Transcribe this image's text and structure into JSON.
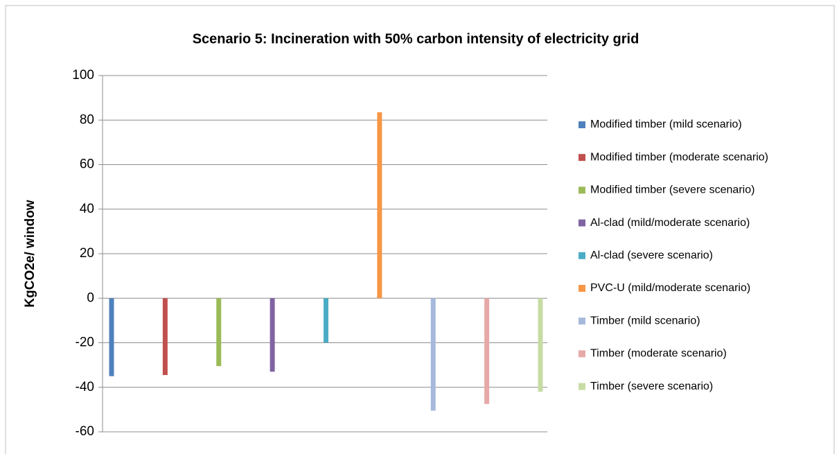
{
  "chart_data": {
    "type": "bar",
    "title": "Scenario 5: Incineration with 50% carbon intensity of electricity grid",
    "y_label": "KgCO2e/ window",
    "categories": [
      null
    ],
    "series": [
      {
        "name": "Modified timber (mild scenario)",
        "color": "#4f81bd",
        "values": [
          -35
        ]
      },
      {
        "name": "Modified timber (moderate scenario)",
        "color": "#c0504d",
        "values": [
          -34.5
        ]
      },
      {
        "name": "Modified timber (severe scenario)",
        "color": "#9bbb59",
        "values": [
          -30.5
        ]
      },
      {
        "name": "Al-clad (mild/moderate scenario)",
        "color": "#8064a2",
        "values": [
          -33
        ]
      },
      {
        "name": "Al-clad (severe scenario)",
        "color": "#4bacc6",
        "values": [
          -20
        ]
      },
      {
        "name": "PVC-U (mild/moderate scenario)",
        "color": "#f79646",
        "values": [
          83.5
        ]
      },
      {
        "name": "Timber (mild scenario)",
        "color": "#a6b9dc",
        "values": [
          -50.5
        ]
      },
      {
        "name": "Timber  (moderate scenario)",
        "color": "#e6a9a8",
        "values": [
          -47.5
        ]
      },
      {
        "name": "Timber (severe scenario)",
        "color": "#c7dca4",
        "values": [
          -42
        ]
      }
    ],
    "ylim": [
      -60,
      100
    ],
    "yticks": [
      -60,
      -40,
      -20,
      0,
      20,
      40,
      60,
      80,
      100
    ],
    "grid": true,
    "legend": "right"
  }
}
